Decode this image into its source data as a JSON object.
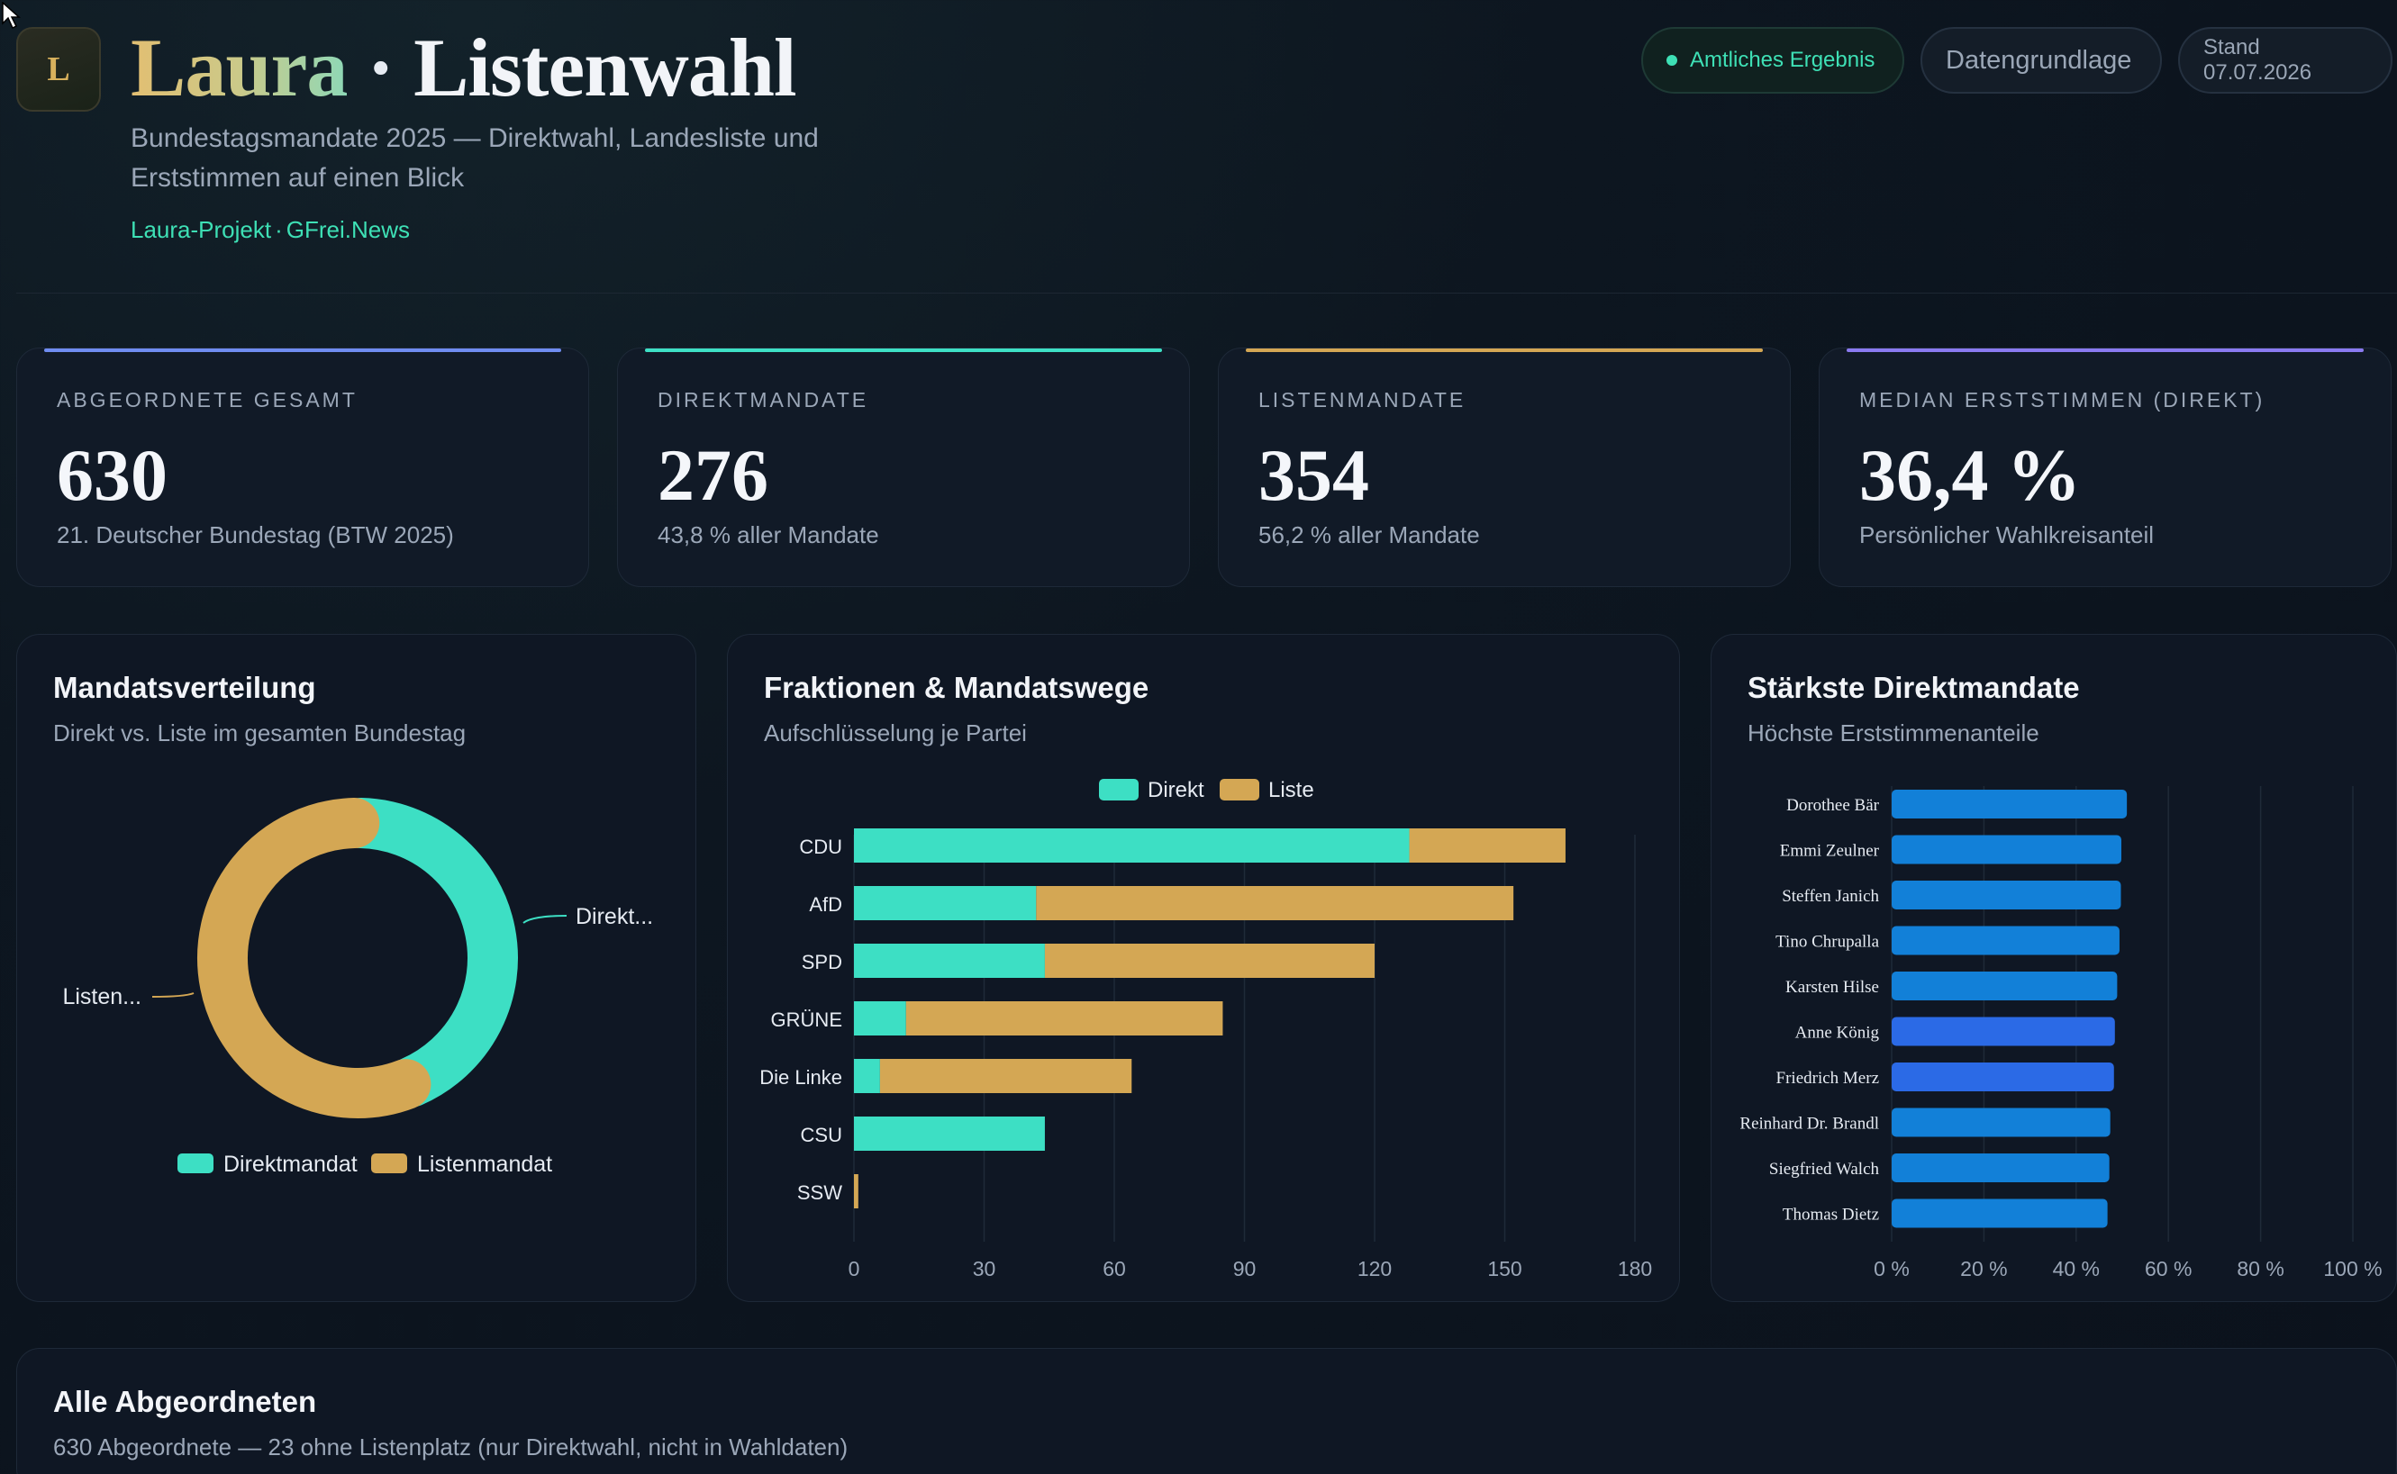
{
  "header": {
    "logo_letter": "L",
    "title_name": "Laura",
    "title_dot": "·",
    "title_rest": "Listenwahl",
    "subtitle": "Bundestagsmandate 2025 — Direktwahl, Landesliste und Erststimmen auf einen Blick",
    "link_project": "Laura-Projekt",
    "link_sep": "·",
    "link_news": "GFrei.News",
    "pill_official": "Amtliches Ergebnis",
    "pill_data": "Datengrundlage",
    "pill_stand": "Stand 07.07.2026"
  },
  "kpis": [
    {
      "label": "ABGEORDNETE GESAMT",
      "value": "630",
      "sub": "21. Deutscher Bundestag (BTW 2025)",
      "accent": "#6f8cf0"
    },
    {
      "label": "DIREKTMANDATE",
      "value": "276",
      "sub": "43,8 % aller Mandate",
      "accent": "#3ee0c5"
    },
    {
      "label": "LISTENMANDATE",
      "value": "354",
      "sub": "56,2 % aller Mandate",
      "accent": "#d4a754"
    },
    {
      "label": "MEDIAN ERSTSTIMMEN (DIREKT)",
      "value": "36,4 %",
      "sub": "Persönlicher Wahlkreisanteil",
      "accent": "#8a7af0"
    }
  ],
  "donut_panel": {
    "title": "Mandatsverteilung",
    "subtitle": "Direkt vs. Liste im gesamten Bundestag",
    "label_direkt": "Direkt...",
    "label_liste": "Listen...",
    "legend": [
      "Direktmandat",
      "Listenmandat"
    ]
  },
  "bar_panel": {
    "title": "Fraktionen & Mandatswege",
    "subtitle": "Aufschlüsselung je Partei",
    "legend": [
      "Direkt",
      "Liste"
    ]
  },
  "top_panel": {
    "title": "Stärkste Direktmandate",
    "subtitle": "Höchste Erststimmenanteile"
  },
  "bottom": {
    "title": "Alle Abgeordneten",
    "subtitle": "630 Abgeordnete — 23 ohne Listenplatz (nur Direktwahl, nicht in Wahldaten)"
  },
  "colors": {
    "direkt": "#3ddfc4",
    "liste": "#d4a754",
    "bar_blue": "#1280d8",
    "bar_blue_alt": "#2b6ae6"
  },
  "chart_data": [
    {
      "type": "pie",
      "title": "Mandatsverteilung",
      "categories": [
        "Direktmandat",
        "Listenmandat"
      ],
      "values": [
        276,
        354
      ]
    },
    {
      "type": "bar",
      "orientation": "horizontal",
      "stacked": true,
      "title": "Fraktionen & Mandatswege",
      "categories": [
        "CDU",
        "AfD",
        "SPD",
        "GRÜNE",
        "Die Linke",
        "CSU",
        "SSW"
      ],
      "series": [
        {
          "name": "Direkt",
          "values": [
            128,
            42,
            44,
            12,
            6,
            44,
            0
          ]
        },
        {
          "name": "Liste",
          "values": [
            36,
            110,
            76,
            73,
            58,
            0,
            1
          ]
        }
      ],
      "xlim": [
        0,
        180
      ],
      "xticks": [
        "0",
        "30",
        "60",
        "90",
        "120",
        "150",
        "180"
      ]
    },
    {
      "type": "bar",
      "orientation": "horizontal",
      "title": "Stärkste Direktmandate",
      "categories": [
        "Dorothee Bär",
        "Emmi Zeulner",
        "Steffen Janich",
        "Tino Chrupalla",
        "Karsten Hilse",
        "Anne König",
        "Friedrich Merz",
        "Reinhard Dr. Brandl",
        "Siegfried Walch",
        "Thomas Dietz"
      ],
      "values": [
        51.0,
        49.8,
        49.7,
        49.4,
        48.9,
        48.4,
        48.2,
        47.4,
        47.2,
        46.8
      ],
      "xlim": [
        0,
        100
      ],
      "xticks": [
        "0 %",
        "20 %",
        "40 %",
        "60 %",
        "80 %",
        "100 %"
      ]
    }
  ]
}
